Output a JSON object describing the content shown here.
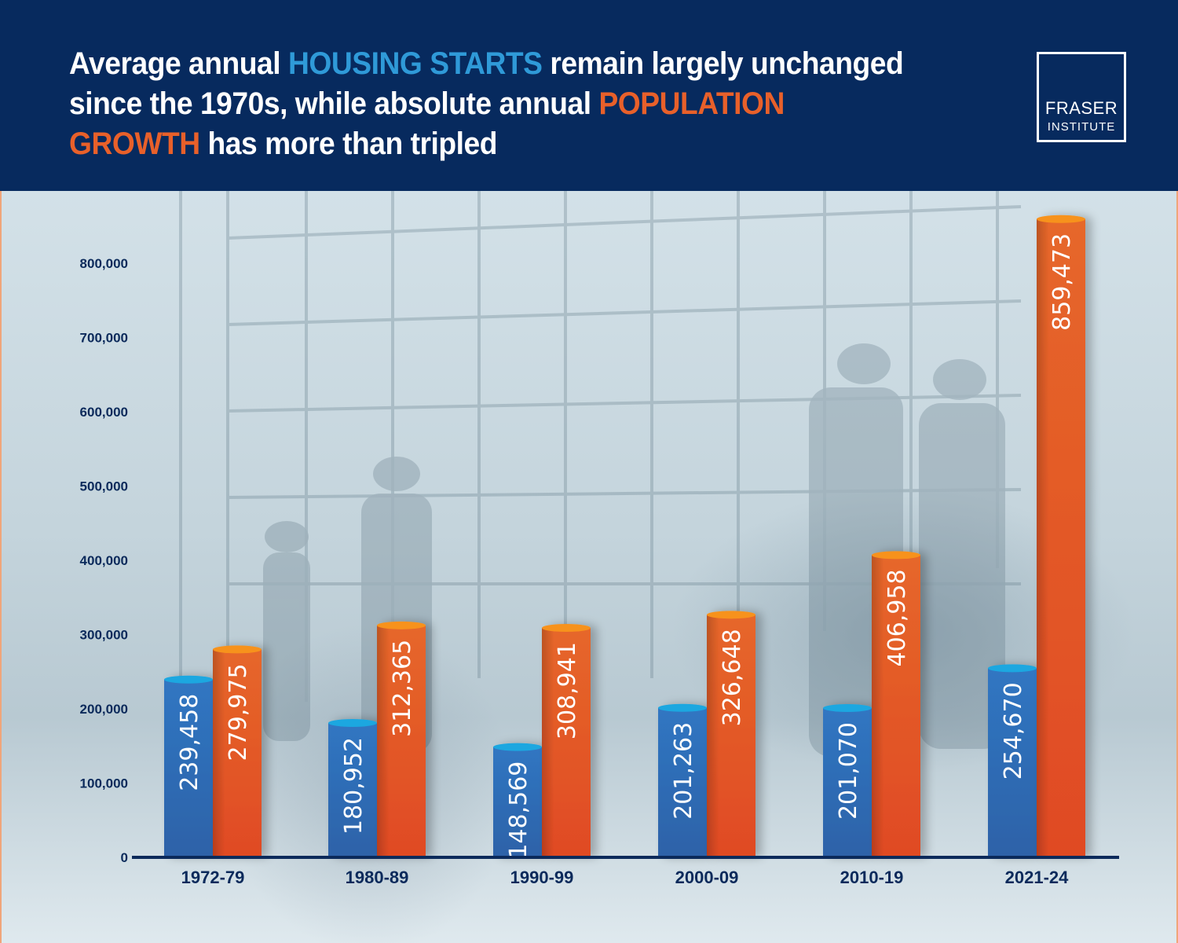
{
  "header": {
    "title_parts": [
      {
        "text": "Average annual ",
        "style": "plain"
      },
      {
        "text": "HOUSING STARTS",
        "style": "blue"
      },
      {
        "text": " remain largely unchanged since the 1970s, while absolute annual ",
        "style": "plain"
      },
      {
        "text": "POPULATION GROWTH",
        "style": "orange"
      },
      {
        "text": " has more than tripled",
        "style": "plain"
      }
    ],
    "logo_line1": "FRASER",
    "logo_line2": "INSTITUTE"
  },
  "colors": {
    "header_bg": "#072a5e",
    "housing_blue": "#2f72bd",
    "housing_top": "#1fa7e0",
    "population_orange": "#e5602a",
    "population_top": "#f7921e",
    "axis": "#0b2a5b"
  },
  "chart_data": {
    "type": "bar",
    "title": "Average annual HOUSING STARTS remain largely unchanged since the 1970s, while absolute annual POPULATION GROWTH has more than tripled",
    "xlabel": "",
    "ylabel": "",
    "categories": [
      "1972-79",
      "1980-89",
      "1990-99",
      "2000-09",
      "2010-19",
      "2021-24"
    ],
    "series": [
      {
        "name": "Housing starts",
        "color": "#2f72bd",
        "values": [
          239458,
          180952,
          148569,
          201263,
          201070,
          254670
        ]
      },
      {
        "name": "Population growth",
        "color": "#e5602a",
        "values": [
          279975,
          312365,
          308941,
          326648,
          406958,
          859473
        ]
      }
    ],
    "data_labels": {
      "Housing starts": [
        "239,458",
        "180,952",
        "148,569",
        "201,263",
        "201,070",
        "254,670"
      ],
      "Population growth": [
        "279,975",
        "312,365",
        "308,941",
        "326,648",
        "406,958",
        "859,473"
      ]
    },
    "yticks": [
      0,
      100000,
      200000,
      300000,
      400000,
      500000,
      600000,
      700000,
      800000
    ],
    "ytick_labels": [
      "0",
      "100,000",
      "200,000",
      "300,000",
      "400,000",
      "500,000",
      "600,000",
      "700,000",
      "800,000"
    ],
    "ylim": [
      0,
      860000
    ],
    "grid": false,
    "legend": "none (series identified by colored title keywords)"
  }
}
